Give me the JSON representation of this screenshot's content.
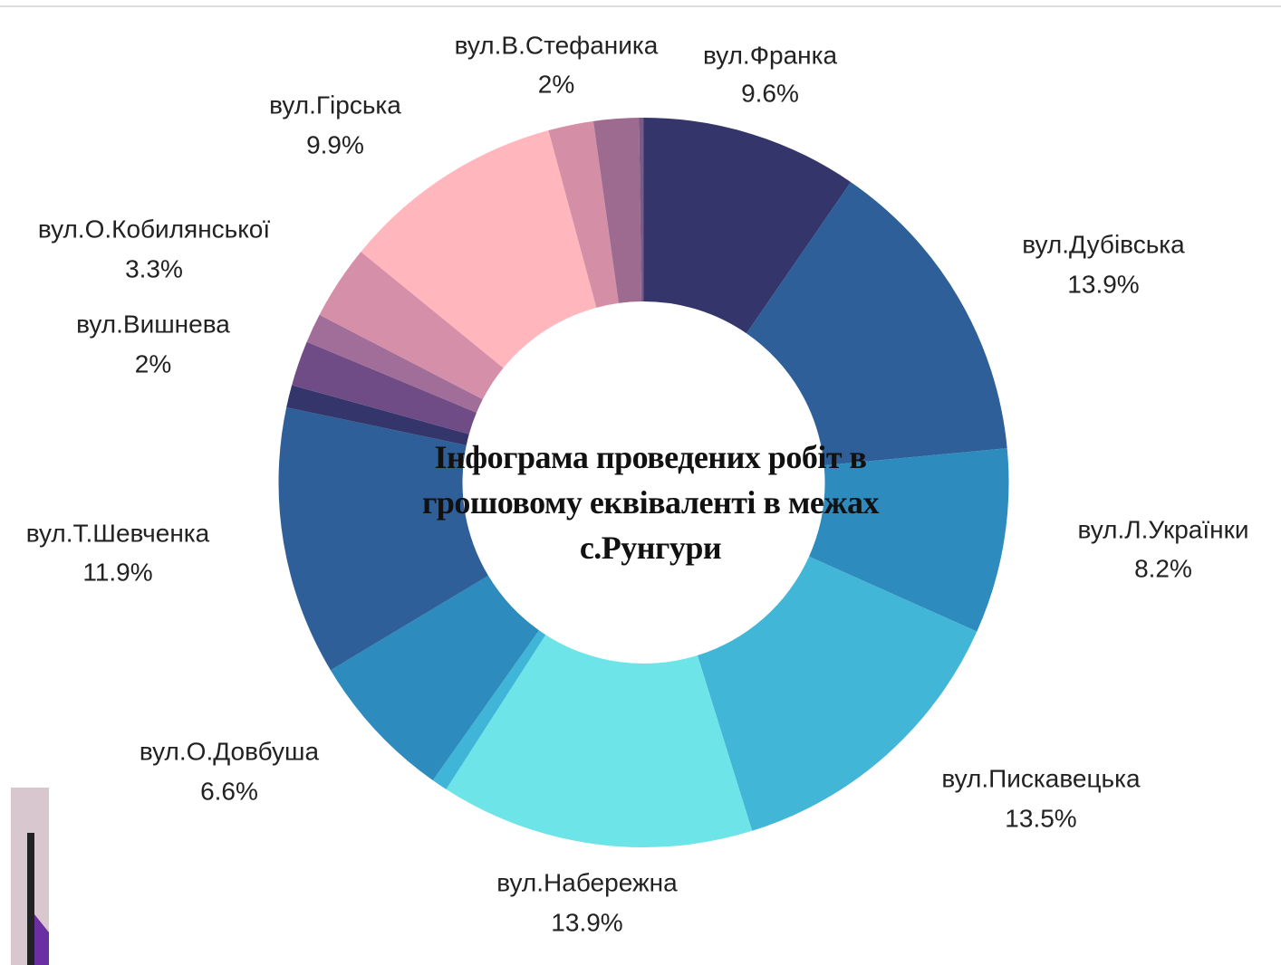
{
  "chart_data": {
    "type": "donut",
    "title": "Інфограма проведених робіт в грошовому еквіваленті в межах с.Рунгури",
    "categories": [
      "вул.Франка",
      "вул.Дубівська",
      "вул.Л.Українки",
      "вул.Пискавецька",
      "вул.Набережна",
      null,
      "вул.О.Довбуша",
      "вул.Т.Шевченка",
      null,
      "вул.Вишнева",
      null,
      "вул.О.Кобилянської",
      "вул.Гірська",
      "вул.В.Стефаника",
      null,
      null
    ],
    "values": [
      9.6,
      13.9,
      8.2,
      13.5,
      13.9,
      0.7,
      6.6,
      11.9,
      1.0,
      2,
      1.3,
      3.3,
      9.9,
      2,
      2,
      0.2
    ],
    "value_labels": [
      "9.6%",
      "13.9%",
      "8.2%",
      "13.5%",
      "13.9%",
      null,
      "6.6%",
      "11.9%",
      null,
      "2%",
      null,
      "3.3%",
      "9.9%",
      "2%",
      null,
      null
    ],
    "colors": [
      "#33356b",
      "#2f5f98",
      "#2e8bbd",
      "#41b6d6",
      "#6ce4e8",
      "#3fb5d8",
      "#2e8bbd",
      "#2f5f98",
      "#33356b",
      "#6f4c85",
      "#a06e98",
      "#d68fa8",
      "#ffb7bd",
      "#d48fa6",
      "#9e6b90",
      "#7a5a86"
    ]
  }
}
